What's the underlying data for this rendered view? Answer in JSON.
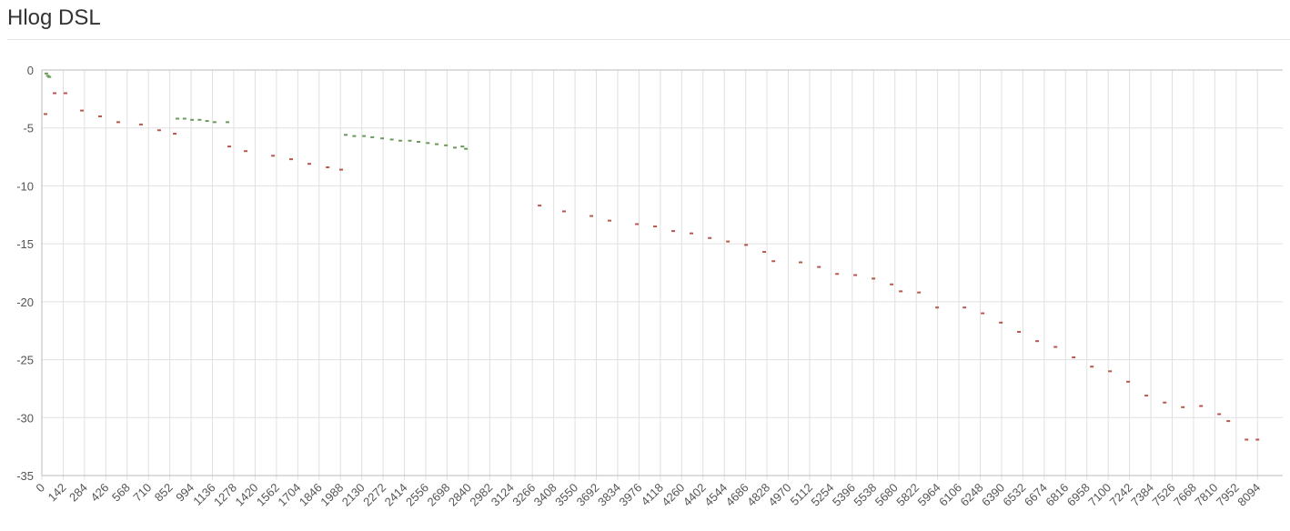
{
  "chart_data": {
    "type": "scatter",
    "title": "Hlog DSL",
    "xlim": [
      0,
      8262
    ],
    "ylim": [
      -35,
      0
    ],
    "xticks": [
      0,
      142,
      284,
      426,
      568,
      710,
      852,
      994,
      1136,
      1278,
      1420,
      1562,
      1704,
      1846,
      1988,
      2130,
      2272,
      2414,
      2556,
      2698,
      2840,
      2982,
      3124,
      3266,
      3408,
      3550,
      3692,
      3834,
      3976,
      4118,
      4260,
      4402,
      4544,
      4686,
      4828,
      4970,
      5112,
      5254,
      5396,
      5538,
      5680,
      5822,
      5964,
      6106,
      6248,
      6390,
      6532,
      6674,
      6816,
      6958,
      7100,
      7242,
      7384,
      7526,
      7668,
      7810,
      7952,
      8094
    ],
    "yticks": [
      0,
      -5,
      -10,
      -15,
      -20,
      -25,
      -30,
      -35
    ],
    "grid": true,
    "series": [
      {
        "color": "#6a9a5b",
        "x": [
          30,
          40,
          50,
          903,
          950,
          1000,
          1050,
          1100,
          1150,
          1236,
          2023,
          2080,
          2145,
          2200,
          2266,
          2330,
          2387,
          2450,
          2508,
          2570,
          2629,
          2690,
          2750,
          2800,
          2823
        ],
        "values": [
          -0.3,
          -0.5,
          -0.6,
          -4.2,
          -4.2,
          -4.3,
          -4.3,
          -4.4,
          -4.5,
          -4.5,
          -5.6,
          -5.7,
          -5.7,
          -5.8,
          -5.9,
          -6.0,
          -6.1,
          -6.1,
          -6.2,
          -6.3,
          -6.4,
          -6.5,
          -6.7,
          -6.6,
          -6.8
        ]
      },
      {
        "color": "#b5594a",
        "x": [
          24,
          85,
          157,
          267,
          388,
          509,
          660,
          781,
          885,
          1248,
          1357,
          1539,
          1660,
          1781,
          1903,
          1993,
          3314,
          3477,
          3659,
          3780,
          3962,
          4083,
          4204,
          4325,
          4447,
          4568,
          4689,
          4810,
          4871,
          5052,
          5174,
          5295,
          5416,
          5537,
          5658,
          5719,
          5840,
          5961,
          6143,
          6264,
          6385,
          6506,
          6627,
          6749,
          6870,
          6991,
          7112,
          7233,
          7354,
          7476,
          7597,
          7718,
          7839,
          7900,
          8021,
          8094
        ],
        "values": [
          -3.8,
          -2.0,
          -2.0,
          -3.5,
          -4.0,
          -4.5,
          -4.7,
          -5.2,
          -5.5,
          -6.6,
          -7.0,
          -7.4,
          -7.7,
          -8.1,
          -8.4,
          -8.6,
          -11.7,
          -12.2,
          -12.6,
          -13.0,
          -13.3,
          -13.5,
          -13.9,
          -14.1,
          -14.5,
          -14.8,
          -15.1,
          -15.7,
          -16.5,
          -16.6,
          -17.0,
          -17.6,
          -17.7,
          -18.0,
          -18.5,
          -19.1,
          -19.2,
          -20.5,
          -20.5,
          -21.0,
          -21.8,
          -22.6,
          -23.4,
          -23.9,
          -24.8,
          -25.6,
          -26.0,
          -26.9,
          -28.1,
          -28.7,
          -29.1,
          -29.0,
          -29.7,
          -30.3,
          -31.9,
          -31.9
        ]
      }
    ]
  }
}
